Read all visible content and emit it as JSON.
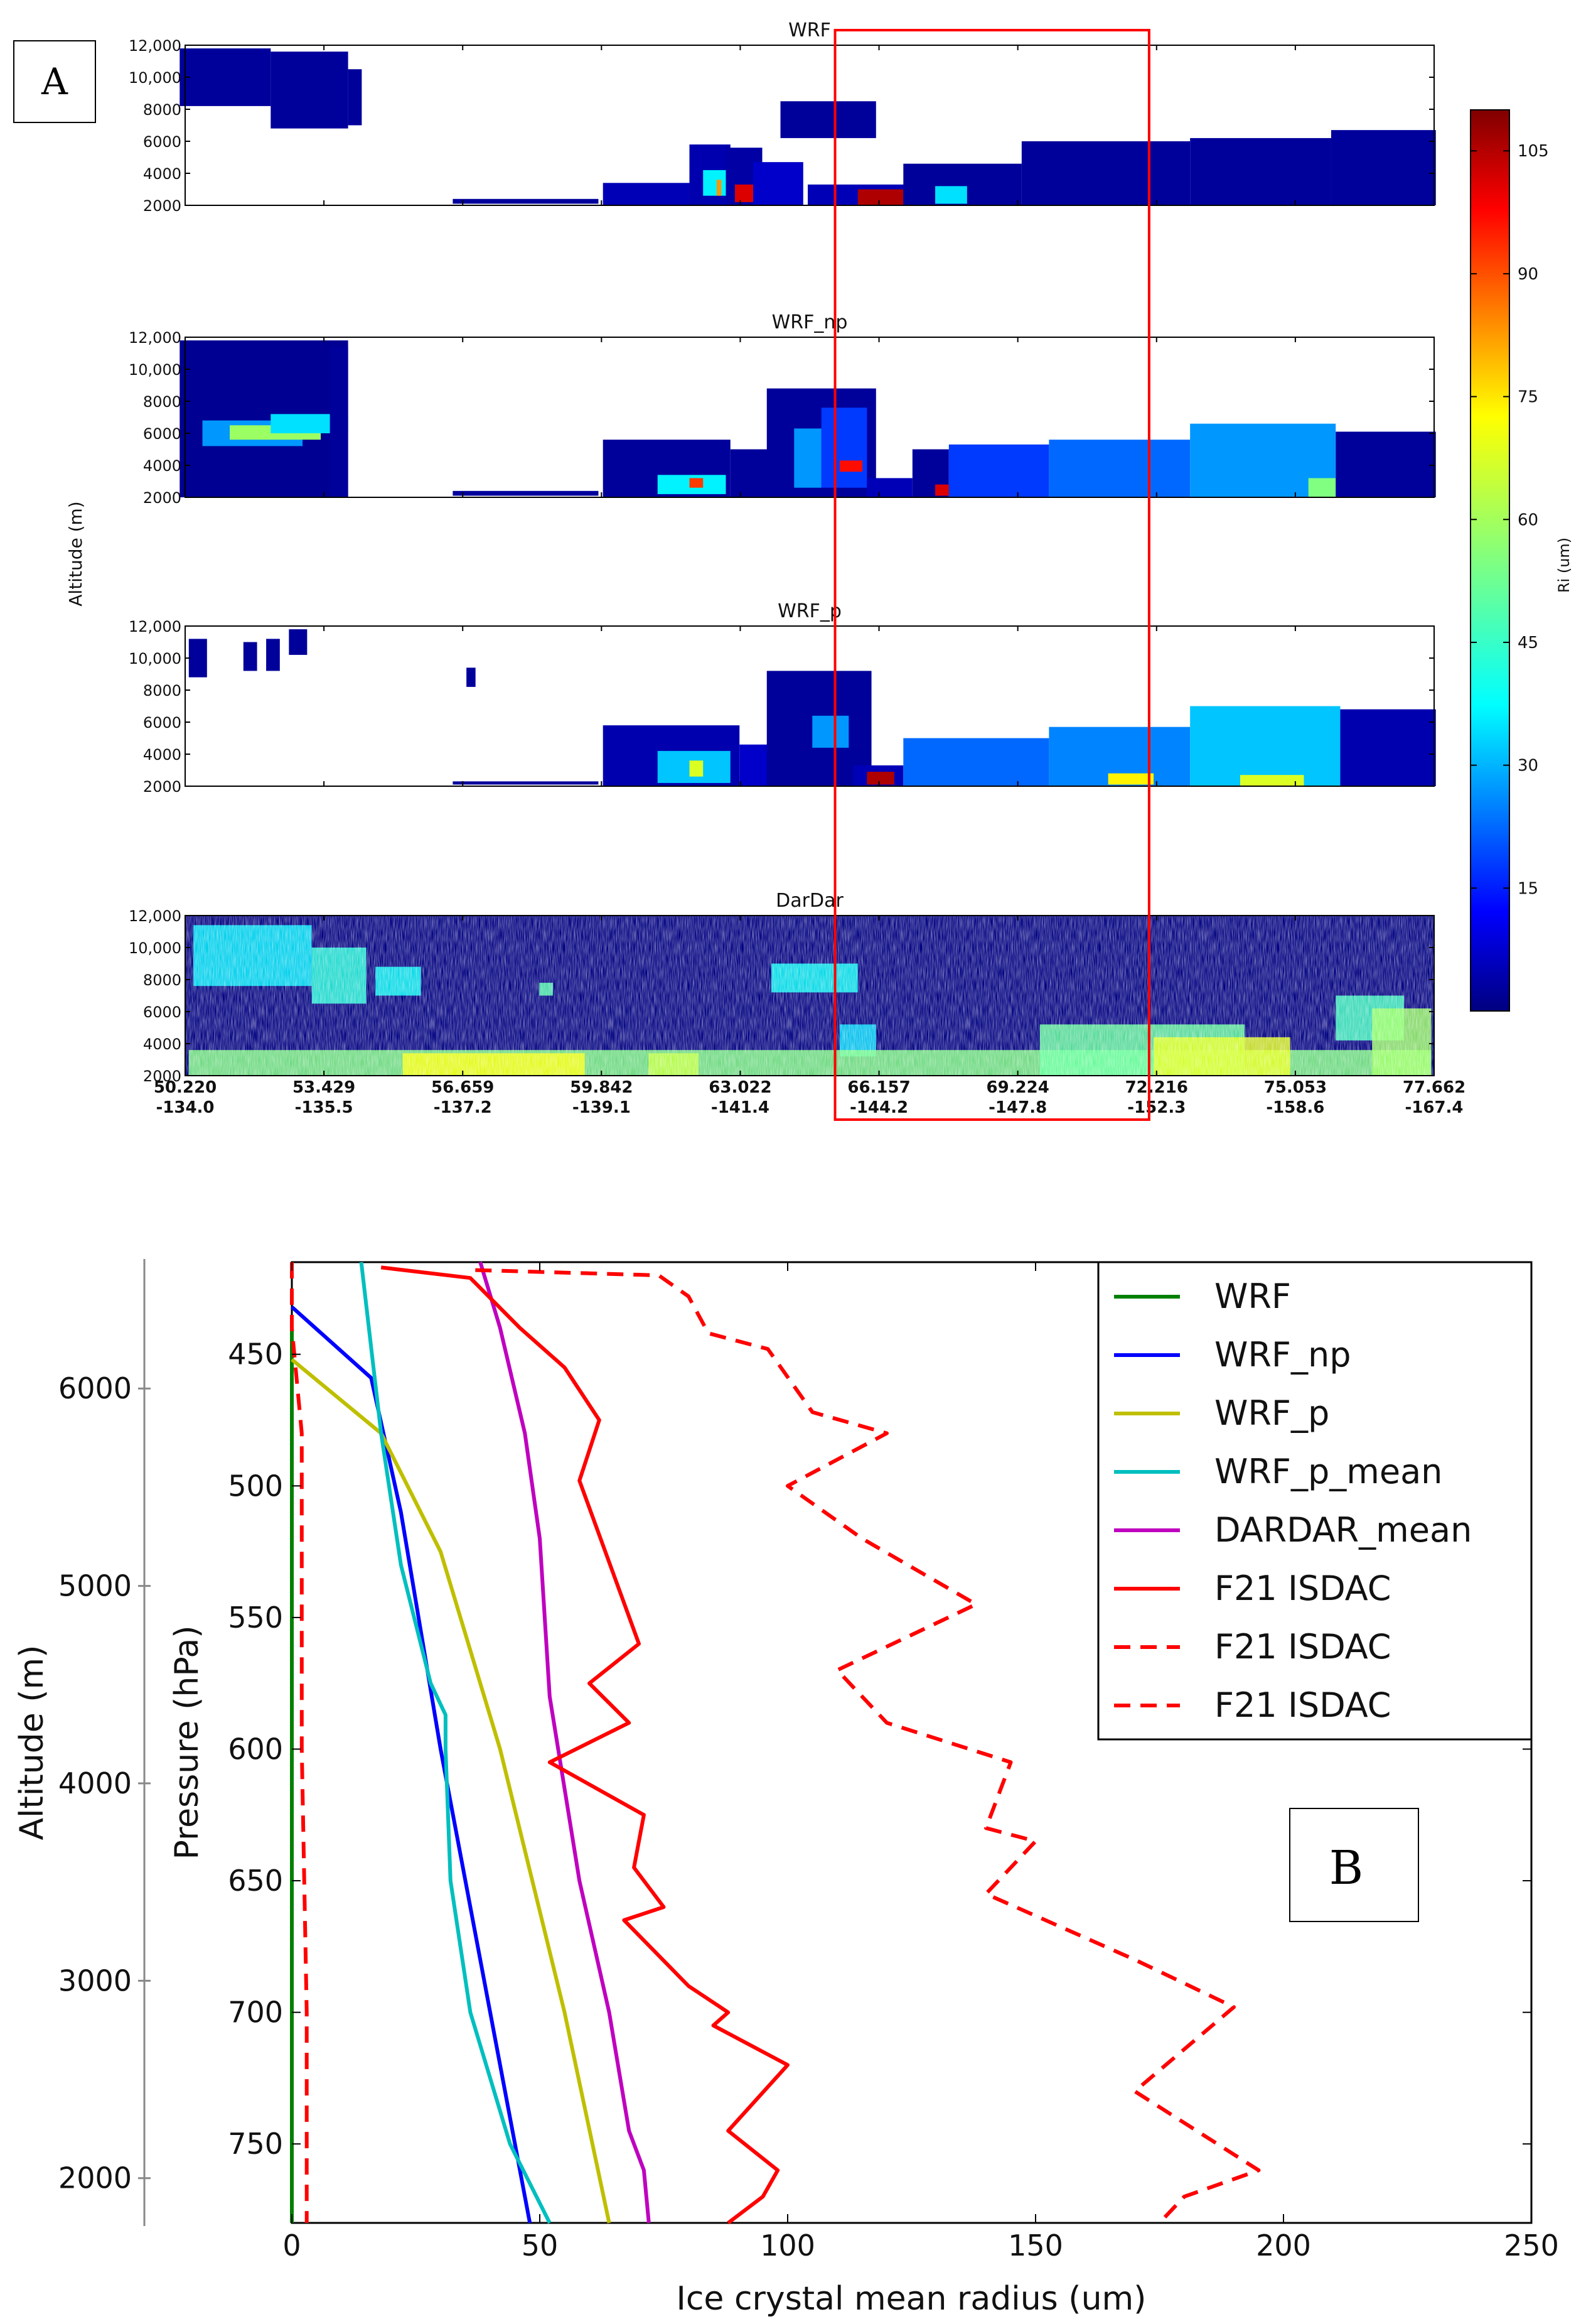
{
  "chart_data": [
    {
      "id": "A",
      "type": "heatmap",
      "panel_label": "A",
      "ylabel": "Altitude (m)",
      "y_ticks": [
        "12,000",
        "10,000",
        "8000",
        "6000",
        "4000",
        "2000"
      ],
      "x_ticks_lat": [
        "50.220",
        "53.429",
        "56.659",
        "59.842",
        "63.022",
        "66.157",
        "69.224",
        "72.216",
        "75.053",
        "77.662"
      ],
      "x_ticks_lon": [
        "-134.0",
        "-135.5",
        "-137.2",
        "-139.1",
        "-141.4",
        "-144.2",
        "-147.8",
        "-152.3",
        "-158.6",
        "-167.4"
      ],
      "highlight_box": {
        "x_from": 64.5,
        "x_to": 71.4,
        "color": "#ff0000"
      },
      "colorbar": {
        "label": "Ri (um)",
        "ticks": [
          "105",
          "90",
          "75",
          "60",
          "45",
          "30",
          "15"
        ],
        "range": [
          0,
          110
        ],
        "colormap": "jet"
      },
      "panels": [
        {
          "title": "WRF",
          "cells": [
            [
              50.1,
              52.1,
              8200,
              11800,
              3
            ],
            [
              52.1,
              53.8,
              6800,
              11600,
              3
            ],
            [
              53.8,
              54.1,
              7000,
              10500,
              3
            ],
            [
              56.1,
              59.3,
              2100,
              2400,
              3
            ],
            [
              59.4,
              61.3,
              2000,
              3400,
              6
            ],
            [
              61.3,
              62.2,
              2000,
              5800,
              5
            ],
            [
              61.6,
              62.1,
              2600,
              4200,
              40
            ],
            [
              61.9,
              62.0,
              2600,
              3600,
              80
            ],
            [
              62.1,
              62.9,
              2000,
              5600,
              4
            ],
            [
              62.3,
              62.7,
              2200,
              3300,
              100
            ],
            [
              62.7,
              63.8,
              2000,
              4700,
              8
            ],
            [
              63.3,
              65.4,
              6200,
              8500,
              3
            ],
            [
              63.9,
              66.2,
              2000,
              3300,
              6
            ],
            [
              65.0,
              66.0,
              2000,
              3000,
              105
            ],
            [
              66.0,
              68.6,
              2000,
              4600,
              3
            ],
            [
              66.7,
              67.4,
              2100,
              3200,
              38
            ],
            [
              68.6,
              72.3,
              2000,
              6000,
              3
            ],
            [
              72.3,
              75.4,
              2000,
              6200,
              3
            ],
            [
              75.4,
              77.7,
              2000,
              6700,
              3
            ]
          ]
        },
        {
          "title": "WRF_np",
          "cells": [
            [
              50.1,
              53.8,
              2000,
              11800,
              2
            ],
            [
              50.6,
              52.8,
              5200,
              6800,
              30
            ],
            [
              51.2,
              53.2,
              5600,
              6500,
              58
            ],
            [
              52.1,
              53.8,
              6000,
              7200,
              38
            ],
            [
              53.4,
              53.8,
              2000,
              11400,
              3
            ],
            [
              56.1,
              59.3,
              2100,
              2400,
              3
            ],
            [
              59.4,
              62.2,
              2000,
              5600,
              3
            ],
            [
              60.6,
              62.1,
              2200,
              3400,
              40
            ],
            [
              61.3,
              61.6,
              2600,
              3200,
              90
            ],
            [
              62.2,
              63.6,
              2000,
              5000,
              3
            ],
            [
              63.0,
              65.4,
              2000,
              8800,
              3
            ],
            [
              63.6,
              64.2,
              2600,
              6300,
              30
            ],
            [
              64.2,
              65.2,
              2600,
              7600,
              20
            ],
            [
              64.6,
              65.1,
              3600,
              4300,
              95
            ],
            [
              65.2,
              66.2,
              2000,
              3200,
              6
            ],
            [
              66.2,
              67.0,
              2000,
              5000,
              3
            ],
            [
              66.7,
              67.2,
              2100,
              2800,
              100
            ],
            [
              67.0,
              69.2,
              2000,
              5300,
              20
            ],
            [
              69.2,
              72.3,
              2000,
              5600,
              25
            ],
            [
              72.3,
              75.5,
              2000,
              6600,
              30
            ],
            [
              74.9,
              75.5,
              2000,
              3200,
              55
            ],
            [
              75.5,
              77.7,
              2000,
              6100,
              3
            ]
          ]
        },
        {
          "title": "WRF_p",
          "cells": [
            [
              50.3,
              50.7,
              8800,
              11200,
              3
            ],
            [
              51.5,
              51.8,
              9200,
              11000,
              3
            ],
            [
              52.0,
              52.3,
              9200,
              11200,
              3
            ],
            [
              52.5,
              52.9,
              10200,
              11800,
              3
            ],
            [
              56.4,
              56.6,
              8200,
              9400,
              3
            ],
            [
              56.1,
              59.3,
              2100,
              2300,
              3
            ],
            [
              59.4,
              62.4,
              2000,
              5800,
              5
            ],
            [
              60.6,
              62.2,
              2200,
              4200,
              35
            ],
            [
              61.3,
              61.6,
              2600,
              3600,
              65
            ],
            [
              62.4,
              63.8,
              2000,
              4600,
              8
            ],
            [
              63.0,
              65.3,
              2000,
              9200,
              3
            ],
            [
              64.0,
              64.8,
              4400,
              6400,
              30
            ],
            [
              64.9,
              66.0,
              2000,
              3300,
              6
            ],
            [
              65.2,
              65.8,
              2100,
              2900,
              105
            ],
            [
              66.0,
              69.2,
              2000,
              5000,
              25
            ],
            [
              69.2,
              72.3,
              2000,
              5700,
              28
            ],
            [
              70.5,
              71.5,
              2100,
              2800,
              70
            ],
            [
              72.3,
              75.6,
              2000,
              7000,
              35
            ],
            [
              73.4,
              74.8,
              2000,
              2700,
              65
            ],
            [
              75.6,
              77.7,
              2000,
              6800,
              5
            ]
          ]
        },
        {
          "title": "DarDar",
          "cells": []
        }
      ]
    },
    {
      "id": "B",
      "type": "line",
      "panel_label": "B",
      "xlabel": "Ice crystal mean radius (um)",
      "ylabel": "Pressure (hPa)",
      "ylabel_secondary": "Altitude (m)",
      "xlim": [
        0,
        250
      ],
      "ylim": [
        415,
        780
      ],
      "x_ticks": [
        "0",
        "50",
        "100",
        "150",
        "200",
        "250"
      ],
      "y_ticks": [
        "450",
        "500",
        "550",
        "600",
        "650",
        "700",
        "750"
      ],
      "altitude_ticks": [
        "6000",
        "5000",
        "4000",
        "3000",
        "2000"
      ],
      "altitude_tick_pressures": [
        463,
        538,
        613,
        688,
        763
      ],
      "legend": [
        "WRF",
        "WRF_np",
        "WRF_p",
        "WRF_p_mean",
        "DARDAR_mean",
        "F21 ISDAC",
        "F21 ISDAC",
        "F21 ISDAC"
      ],
      "series": [
        {
          "name": "WRF",
          "color": "#008000",
          "dash": false,
          "x": [
            0,
            0,
            0,
            0,
            0
          ],
          "y": [
            440,
            500,
            600,
            700,
            780
          ]
        },
        {
          "name": "WRF_np",
          "color": "#0000ff",
          "dash": false,
          "x": [
            0,
            16,
            22,
            30,
            40,
            48
          ],
          "y": [
            432,
            459,
            510,
            600,
            700,
            780
          ]
        },
        {
          "name": "WRF_p",
          "color": "#bfbf00",
          "dash": false,
          "x": [
            0,
            18,
            30,
            42,
            55,
            64
          ],
          "y": [
            452,
            480,
            525,
            600,
            700,
            780
          ]
        },
        {
          "name": "WRF_p_mean",
          "color": "#00bfbf",
          "dash": false,
          "x": [
            14,
            18,
            22,
            28,
            31,
            31,
            32,
            36,
            44,
            52
          ],
          "y": [
            415,
            480,
            530,
            575,
            587,
            600,
            650,
            700,
            750,
            780
          ]
        },
        {
          "name": "DARDAR_mean",
          "color": "#bf00bf",
          "dash": false,
          "x": [
            38,
            42,
            47,
            50,
            52,
            58,
            64,
            68,
            71,
            72
          ],
          "y": [
            415,
            440,
            480,
            520,
            580,
            650,
            700,
            745,
            760,
            780
          ]
        },
        {
          "name": "F21 ISDAC",
          "color": "#ff0000",
          "dash": false,
          "x": [
            18,
            36,
            46,
            55,
            62,
            58,
            70,
            60,
            68,
            52,
            71,
            69,
            75,
            67,
            80,
            88,
            85,
            100,
            88,
            98,
            95,
            88
          ],
          "y": [
            417,
            421,
            440,
            455,
            475,
            498,
            560,
            575,
            590,
            605,
            625,
            645,
            660,
            665,
            690,
            700,
            705,
            720,
            745,
            760,
            770,
            780
          ]
        },
        {
          "name": "F21 ISDAC",
          "color": "#ff0000",
          "dash": true,
          "x": [
            37,
            74,
            80,
            84,
            96,
            105,
            120,
            100,
            115,
            138,
            110,
            120,
            145,
            140,
            150,
            140,
            170,
            190,
            170,
            195,
            180,
            175
          ],
          "y": [
            418,
            420,
            428,
            442,
            448,
            472,
            480,
            500,
            520,
            545,
            570,
            590,
            605,
            630,
            635,
            655,
            680,
            698,
            730,
            760,
            770,
            780
          ]
        },
        {
          "name": "F21 ISDAC",
          "color": "#ff0000",
          "dash": true,
          "x": [
            0,
            0,
            2,
            2,
            3,
            3
          ],
          "y": [
            415,
            440,
            480,
            600,
            700,
            780
          ]
        }
      ]
    }
  ]
}
